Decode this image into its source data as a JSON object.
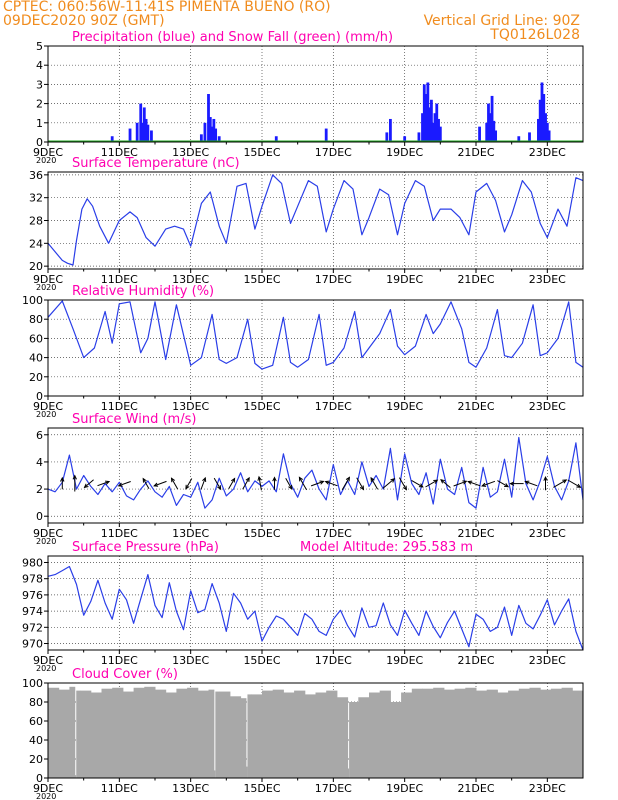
{
  "header": {
    "line1_left": "CPTEC:  060:56W-11:41S  PIMENTA BUENO (RO)",
    "line2_left": "09DEC2020 90Z (GMT)",
    "line2_right": "Vertical Grid Line: 90Z",
    "line3_right": "TQ0126L028"
  },
  "x_axis": {
    "tick_labels": [
      "9DEC",
      "11DEC",
      "13DEC",
      "15DEC",
      "17DEC",
      "19DEC",
      "21DEC",
      "23DEC"
    ],
    "year_label": "2020",
    "day_range": [
      9,
      24
    ]
  },
  "colors": {
    "line": "#2a3ee8",
    "precip": "#1a1aff",
    "snow": "#1faa1f",
    "title": "#ff00b0",
    "header": "#f08c1e",
    "cloud": "#a8a8a8"
  },
  "chart_data": [
    {
      "type": "bar",
      "title": "Precipitation (blue) and Snow Fall (green) (mm/h)",
      "ylim": [
        0,
        5
      ],
      "yticks": [
        0,
        1,
        2,
        3,
        4,
        5
      ],
      "series": [
        {
          "name": "Precipitation",
          "x": [
            10.8,
            11.3,
            11.5,
            11.6,
            11.65,
            11.7,
            11.75,
            11.8,
            11.9,
            13.3,
            13.4,
            13.5,
            13.55,
            13.6,
            13.65,
            13.7,
            13.8,
            15.4,
            16.8,
            18.5,
            18.6,
            19.0,
            19.4,
            19.5,
            19.55,
            19.6,
            19.65,
            19.7,
            19.75,
            19.8,
            19.85,
            19.9,
            19.95,
            20.0,
            21.1,
            21.3,
            21.35,
            21.4,
            21.45,
            21.5,
            21.55,
            22.2,
            22.5,
            22.75,
            22.8,
            22.85,
            22.9,
            22.95,
            23.0,
            23.05
          ],
          "values": [
            0.3,
            0.7,
            1.0,
            2.0,
            1.0,
            1.8,
            1.2,
            0.9,
            0.6,
            0.4,
            1.0,
            2.5,
            1.3,
            0.8,
            1.2,
            0.7,
            0.3,
            0.3,
            0.7,
            0.5,
            1.2,
            0.3,
            0.5,
            1.5,
            3.0,
            2.5,
            3.1,
            1.8,
            2.2,
            1.0,
            1.5,
            2.0,
            1.2,
            0.8,
            0.8,
            1.0,
            2.0,
            1.5,
            2.4,
            1.1,
            0.6,
            0.3,
            0.5,
            1.2,
            2.2,
            3.1,
            2.5,
            1.5,
            1.0,
            0.6
          ]
        },
        {
          "name": "Snow Fall",
          "x": [
            9,
            24
          ],
          "values": [
            0,
            0
          ]
        }
      ]
    },
    {
      "type": "line",
      "title": "Surface Temperature (nC)",
      "ylim": [
        19.5,
        36.5
      ],
      "yticks": [
        20,
        24,
        28,
        32,
        36
      ],
      "x": [
        9.0,
        9.4,
        9.55,
        9.7,
        9.8,
        9.95,
        10.1,
        10.25,
        10.45,
        10.7,
        11.0,
        11.3,
        11.5,
        11.75,
        12.0,
        12.3,
        12.55,
        12.8,
        13.0,
        13.3,
        13.55,
        13.8,
        14.0,
        14.3,
        14.55,
        14.8,
        15.0,
        15.3,
        15.55,
        15.8,
        16.0,
        16.3,
        16.55,
        16.8,
        17.0,
        17.3,
        17.55,
        17.8,
        18.0,
        18.3,
        18.55,
        18.8,
        19.0,
        19.3,
        19.55,
        19.8,
        20.0,
        20.3,
        20.55,
        20.8,
        21.0,
        21.3,
        21.55,
        21.8,
        22.0,
        22.3,
        22.55,
        22.8,
        23.0,
        23.3,
        23.55,
        23.8,
        24.0
      ],
      "series": [
        {
          "name": "Surface Temperature",
          "values": [
            24.0,
            21.0,
            20.5,
            20.2,
            24.5,
            30.0,
            31.8,
            30.5,
            27.0,
            24.0,
            28.0,
            29.5,
            28.5,
            25.0,
            23.5,
            26.5,
            27.0,
            26.5,
            23.5,
            31.0,
            33.0,
            27.0,
            24.0,
            34.0,
            34.5,
            26.5,
            30.5,
            36.0,
            34.5,
            27.5,
            30.5,
            35.0,
            34.0,
            26.0,
            30.0,
            35.0,
            33.5,
            25.5,
            28.5,
            33.5,
            32.5,
            25.5,
            31.0,
            35.0,
            34.0,
            28.0,
            30.0,
            30.0,
            28.5,
            25.5,
            33.0,
            34.5,
            31.5,
            26.0,
            29.0,
            35.0,
            33.0,
            27.5,
            25.0,
            30.0,
            27.0,
            35.5,
            35.0
          ]
        }
      ]
    },
    {
      "type": "line",
      "title": "Relative Humidity (%)",
      "ylim": [
        0,
        100
      ],
      "yticks": [
        0,
        20,
        40,
        60,
        80,
        100
      ],
      "x": [
        9.0,
        9.4,
        9.7,
        10.0,
        10.3,
        10.6,
        10.8,
        11.0,
        11.3,
        11.6,
        11.8,
        12.0,
        12.3,
        12.6,
        13.0,
        13.3,
        13.6,
        13.8,
        14.0,
        14.3,
        14.6,
        14.8,
        15.0,
        15.3,
        15.6,
        15.8,
        16.0,
        16.3,
        16.6,
        16.8,
        17.0,
        17.3,
        17.6,
        17.8,
        18.0,
        18.3,
        18.6,
        18.8,
        19.0,
        19.3,
        19.6,
        19.8,
        20.0,
        20.3,
        20.6,
        20.8,
        21.0,
        21.3,
        21.6,
        21.8,
        22.0,
        22.3,
        22.6,
        22.8,
        23.0,
        23.3,
        23.6,
        23.8,
        24.0
      ],
      "series": [
        {
          "name": "Relative Humidity",
          "values": [
            82,
            99,
            70,
            40,
            50,
            88,
            55,
            96,
            98,
            45,
            60,
            98,
            38,
            95,
            32,
            40,
            85,
            38,
            34,
            40,
            80,
            34,
            28,
            32,
            82,
            35,
            30,
            38,
            85,
            32,
            35,
            50,
            88,
            40,
            50,
            65,
            90,
            52,
            43,
            52,
            85,
            65,
            75,
            98,
            70,
            35,
            30,
            50,
            90,
            42,
            40,
            55,
            95,
            42,
            45,
            60,
            98,
            35,
            30
          ]
        }
      ]
    },
    {
      "type": "line",
      "title": "Surface Wind (m/s)",
      "ylim": [
        -0.5,
        6.5
      ],
      "yticks": [
        0,
        2,
        4,
        6
      ],
      "x": [
        9.0,
        9.2,
        9.4,
        9.6,
        9.8,
        10.0,
        10.2,
        10.4,
        10.6,
        10.8,
        11.0,
        11.2,
        11.4,
        11.6,
        11.8,
        12.0,
        12.2,
        12.4,
        12.6,
        12.8,
        13.0,
        13.2,
        13.4,
        13.6,
        13.8,
        14.0,
        14.2,
        14.4,
        14.6,
        14.8,
        15.0,
        15.2,
        15.4,
        15.6,
        15.8,
        16.0,
        16.2,
        16.4,
        16.6,
        16.8,
        17.0,
        17.2,
        17.4,
        17.6,
        17.8,
        18.0,
        18.2,
        18.4,
        18.6,
        18.8,
        19.0,
        19.2,
        19.4,
        19.6,
        19.8,
        20.0,
        20.2,
        20.4,
        20.6,
        20.8,
        21.0,
        21.2,
        21.4,
        21.6,
        21.8,
        22.0,
        22.2,
        22.4,
        22.6,
        22.8,
        23.0,
        23.2,
        23.4,
        23.6,
        23.8,
        24.0
      ],
      "series": [
        {
          "name": "Surface Wind",
          "values": [
            2.0,
            1.8,
            2.5,
            4.5,
            2.0,
            3.0,
            2.2,
            1.6,
            2.4,
            1.8,
            2.5,
            1.5,
            1.2,
            2.0,
            2.6,
            1.8,
            1.4,
            2.2,
            0.8,
            1.6,
            1.4,
            2.5,
            0.6,
            1.2,
            2.8,
            1.5,
            2.0,
            3.2,
            1.8,
            2.6,
            2.2,
            2.6,
            1.8,
            4.6,
            2.4,
            1.4,
            2.8,
            3.4,
            2.0,
            1.2,
            3.8,
            1.6,
            2.6,
            1.6,
            4.0,
            2.2,
            3.0,
            2.0,
            5.0,
            1.2,
            4.6,
            2.4,
            1.6,
            3.2,
            0.9,
            4.2,
            2.0,
            1.6,
            3.6,
            1.0,
            0.6,
            3.6,
            1.4,
            1.8,
            4.2,
            1.4,
            5.8,
            2.4,
            1.2,
            2.6,
            4.4,
            2.2,
            1.2,
            2.6,
            5.4,
            1.2
          ]
        }
      ],
      "wind_vectors": {
        "x": [
          9.4,
          9.75,
          10.15,
          10.55,
          11.15,
          11.75,
          12.15,
          12.55,
          12.95,
          13.35,
          13.75,
          14.15,
          14.55,
          14.95,
          15.35,
          15.75,
          16.15,
          16.55,
          16.95,
          17.35,
          17.75,
          18.15,
          18.55,
          18.95,
          19.35,
          19.75,
          20.15,
          20.55,
          20.95,
          21.35,
          21.75,
          22.15,
          22.55,
          22.95,
          23.35,
          23.75
        ],
        "speed": [
          2.0,
          4.0,
          2.2,
          2.4,
          2.6,
          2.1,
          2.8,
          2.5,
          2.2,
          2.4,
          2.6,
          2.2,
          2.8,
          3.0,
          2.4,
          2.4,
          3.4,
          2.8,
          2.6,
          3.4,
          3.0,
          2.8,
          3.6,
          3.2,
          2.8,
          3.0,
          2.4,
          3.0,
          2.6,
          3.0,
          2.4,
          2.8,
          2.6,
          2.8,
          3.6,
          3.4
        ],
        "dir_deg": [
          90,
          90,
          220,
          20,
          200,
          120,
          200,
          120,
          240,
          70,
          300,
          60,
          60,
          100,
          90,
          300,
          120,
          20,
          160,
          60,
          300,
          120,
          40,
          300,
          330,
          30,
          140,
          20,
          160,
          200,
          330,
          180,
          160,
          90,
          30,
          330
        ]
      }
    },
    {
      "type": "line",
      "title": "Surface Pressure (hPa)",
      "annotation": "Model Altitude: 295.583 m",
      "ylim": [
        969.2,
        980.8
      ],
      "yticks": [
        970,
        972,
        974,
        976,
        978,
        980
      ],
      "x": [
        9.0,
        9.2,
        9.4,
        9.6,
        9.8,
        10.0,
        10.2,
        10.4,
        10.6,
        10.8,
        11.0,
        11.2,
        11.4,
        11.6,
        11.8,
        12.0,
        12.2,
        12.4,
        12.6,
        12.8,
        13.0,
        13.2,
        13.4,
        13.6,
        13.8,
        14.0,
        14.2,
        14.4,
        14.6,
        14.8,
        15.0,
        15.2,
        15.4,
        15.6,
        15.8,
        16.0,
        16.2,
        16.4,
        16.6,
        16.8,
        17.0,
        17.2,
        17.4,
        17.6,
        17.8,
        18.0,
        18.2,
        18.4,
        18.6,
        18.8,
        19.0,
        19.2,
        19.4,
        19.6,
        19.8,
        20.0,
        20.2,
        20.4,
        20.6,
        20.8,
        21.0,
        21.2,
        21.4,
        21.6,
        21.8,
        22.0,
        22.2,
        22.4,
        22.6,
        22.8,
        23.0,
        23.2,
        23.4,
        23.6,
        23.8,
        24.0
      ],
      "series": [
        {
          "name": "Surface Pressure",
          "values": [
            978.3,
            978.5,
            979.0,
            979.5,
            977.3,
            973.5,
            975.2,
            977.8,
            975.0,
            973.0,
            976.7,
            975.4,
            972.5,
            975.5,
            978.5,
            974.7,
            973.2,
            977.5,
            974.0,
            971.7,
            976.5,
            973.8,
            974.2,
            977.4,
            975.0,
            971.5,
            976.2,
            975.0,
            973.0,
            974.0,
            970.3,
            972.0,
            973.4,
            973.0,
            972.0,
            971.0,
            973.7,
            973.0,
            971.5,
            971.0,
            973.0,
            974.1,
            972.2,
            970.8,
            974.4,
            972.0,
            972.2,
            975.0,
            972.3,
            971.0,
            974.1,
            972.5,
            971.0,
            974.0,
            972.1,
            970.7,
            972.6,
            974.0,
            971.8,
            969.6,
            973.6,
            973.0,
            971.5,
            972.0,
            974.5,
            971.0,
            974.7,
            972.5,
            971.8,
            973.5,
            975.4,
            972.3,
            974.0,
            975.5,
            971.5,
            969.2
          ]
        }
      ]
    },
    {
      "type": "bar",
      "title": "Cloud Cover (%)",
      "ylim": [
        0,
        100
      ],
      "yticks": [
        0,
        20,
        40,
        60,
        80,
        100
      ],
      "x": [
        9.0,
        9.3,
        9.6,
        9.75,
        9.9,
        10.2,
        10.5,
        10.8,
        11.1,
        11.4,
        11.7,
        12.0,
        12.3,
        12.6,
        12.9,
        13.2,
        13.5,
        13.65,
        13.8,
        14.1,
        14.4,
        14.55,
        14.7,
        15.0,
        15.3,
        15.6,
        15.9,
        16.2,
        16.5,
        16.8,
        17.1,
        17.4,
        17.5,
        17.7,
        18.0,
        18.3,
        18.6,
        18.9,
        19.2,
        19.5,
        19.8,
        20.1,
        20.4,
        20.7,
        21.0,
        21.3,
        21.6,
        21.9,
        22.2,
        22.5,
        22.8,
        23.1,
        23.4,
        23.7,
        24.0
      ],
      "series": [
        {
          "name": "Cloud Cover",
          "values": [
            95,
            93,
            96,
            3,
            92,
            90,
            94,
            95,
            91,
            95,
            96,
            93,
            90,
            94,
            95,
            92,
            93,
            8,
            91,
            86,
            84,
            12,
            88,
            92,
            93,
            90,
            92,
            88,
            90,
            92,
            85,
            10,
            80,
            85,
            90,
            92,
            80,
            90,
            94,
            94,
            95,
            93,
            94,
            95,
            92,
            93,
            90,
            92,
            94,
            95,
            93,
            94,
            95,
            92,
            96
          ]
        }
      ]
    }
  ]
}
